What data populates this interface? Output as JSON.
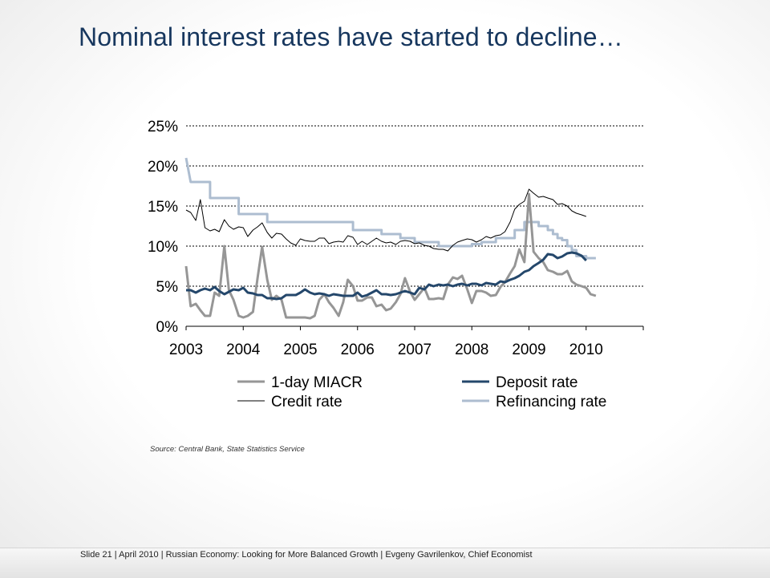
{
  "slide": {
    "title": "Nominal interest rates have started to decline…",
    "source": "Source: Central Bank, State Statistics Service",
    "footer": "Slide 21  | April 2010 | Russian Economy: Looking for More Balanced Growth | Evgeny Gavrilenkov, Chief Economist"
  },
  "chart_data": {
    "type": "line",
    "title": "",
    "x_tick_labels": [
      "2003",
      "2004",
      "2005",
      "2006",
      "2007",
      "2008",
      "2009",
      "2010"
    ],
    "y_tick_labels": [
      "0%",
      "5%",
      "10%",
      "15%",
      "20%",
      "25%"
    ],
    "ylim": [
      0,
      25
    ],
    "xlim": [
      2003.0,
      2011.0
    ],
    "grid": "horizontal dotted",
    "legend_position": "bottom",
    "series": [
      {
        "name": "1-day MIACR",
        "color": "#969696",
        "x": [
          2003.0,
          2003.08,
          2003.17,
          2003.25,
          2003.33,
          2003.42,
          2003.5,
          2003.58,
          2003.67,
          2003.75,
          2003.83,
          2003.92,
          2004.0,
          2004.08,
          2004.17,
          2004.25,
          2004.33,
          2004.42,
          2004.5,
          2004.58,
          2004.67,
          2004.75,
          2004.83,
          2004.92,
          2005.0,
          2005.08,
          2005.17,
          2005.25,
          2005.33,
          2005.42,
          2005.5,
          2005.58,
          2005.67,
          2005.75,
          2005.83,
          2005.92,
          2006.0,
          2006.08,
          2006.17,
          2006.25,
          2006.33,
          2006.42,
          2006.5,
          2006.58,
          2006.67,
          2006.75,
          2006.83,
          2006.92,
          2007.0,
          2007.08,
          2007.17,
          2007.25,
          2007.33,
          2007.42,
          2007.5,
          2007.58,
          2007.67,
          2007.75,
          2007.83,
          2007.92,
          2008.0,
          2008.08,
          2008.17,
          2008.25,
          2008.33,
          2008.42,
          2008.5,
          2008.58,
          2008.67,
          2008.75,
          2008.83,
          2008.92,
          2009.0,
          2009.08,
          2009.17,
          2009.25,
          2009.33,
          2009.42,
          2009.5,
          2009.58,
          2009.67,
          2009.75,
          2009.83,
          2009.92,
          2010.0,
          2010.08,
          2010.17
        ],
        "y": [
          7.5,
          2.5,
          2.8,
          2.0,
          1.3,
          1.3,
          4.2,
          3.8,
          10.0,
          4.5,
          3.3,
          1.3,
          1.1,
          1.3,
          1.8,
          6.0,
          9.9,
          5.8,
          3.3,
          3.8,
          3.3,
          1.1,
          1.1,
          1.1,
          1.1,
          1.1,
          1.0,
          1.3,
          3.3,
          4.0,
          3.0,
          2.3,
          1.3,
          3.0,
          5.8,
          5.0,
          3.2,
          3.2,
          3.6,
          3.6,
          2.5,
          2.7,
          2.0,
          2.2,
          3.0,
          4.0,
          6.0,
          4.3,
          3.3,
          4.0,
          4.8,
          3.4,
          3.4,
          3.5,
          3.4,
          5.2,
          6.1,
          5.9,
          6.3,
          4.6,
          2.9,
          4.4,
          4.4,
          4.2,
          3.8,
          3.9,
          4.9,
          5.5,
          6.6,
          7.5,
          9.6,
          8.0,
          16.5,
          9.3,
          8.5,
          8.0,
          7.0,
          6.8,
          6.5,
          6.5,
          6.9,
          5.6,
          5.2,
          5.0,
          4.8,
          4.0,
          3.8
        ]
      },
      {
        "name": "Deposit rate",
        "color": "#24476b",
        "x": [
          2003.0,
          2003.08,
          2003.17,
          2003.25,
          2003.33,
          2003.42,
          2003.5,
          2003.58,
          2003.67,
          2003.75,
          2003.83,
          2003.92,
          2004.0,
          2004.08,
          2004.17,
          2004.25,
          2004.33,
          2004.42,
          2004.5,
          2004.58,
          2004.67,
          2004.75,
          2004.83,
          2004.92,
          2005.0,
          2005.08,
          2005.17,
          2005.25,
          2005.33,
          2005.42,
          2005.5,
          2005.58,
          2005.67,
          2005.75,
          2005.83,
          2005.92,
          2006.0,
          2006.08,
          2006.17,
          2006.25,
          2006.33,
          2006.42,
          2006.5,
          2006.58,
          2006.67,
          2006.75,
          2006.83,
          2006.92,
          2007.0,
          2007.08,
          2007.17,
          2007.25,
          2007.33,
          2007.42,
          2007.5,
          2007.58,
          2007.67,
          2007.75,
          2007.83,
          2007.92,
          2008.0,
          2008.08,
          2008.17,
          2008.25,
          2008.33,
          2008.42,
          2008.5,
          2008.58,
          2008.67,
          2008.75,
          2008.83,
          2008.92,
          2009.0,
          2009.08,
          2009.17,
          2009.25,
          2009.33,
          2009.42,
          2009.5,
          2009.58,
          2009.67,
          2009.75,
          2009.83,
          2009.92,
          2010.0
        ],
        "y": [
          4.5,
          4.5,
          4.2,
          4.5,
          4.7,
          4.5,
          4.9,
          4.4,
          4.0,
          4.3,
          4.6,
          4.5,
          4.8,
          4.2,
          4.1,
          3.9,
          3.9,
          3.5,
          3.5,
          3.4,
          3.5,
          3.9,
          3.9,
          3.9,
          4.2,
          4.6,
          4.2,
          4.0,
          4.1,
          4.0,
          3.8,
          4.0,
          3.9,
          3.8,
          3.8,
          3.8,
          4.2,
          3.7,
          3.9,
          4.2,
          4.5,
          4.0,
          4.0,
          3.9,
          4.0,
          4.2,
          4.4,
          4.2,
          4.0,
          4.8,
          4.6,
          5.2,
          5.0,
          5.2,
          5.1,
          5.2,
          5.0,
          5.2,
          5.3,
          5.1,
          5.3,
          5.3,
          5.1,
          5.4,
          5.3,
          5.2,
          5.6,
          5.5,
          5.8,
          6.0,
          6.3,
          6.8,
          7.0,
          7.5,
          7.9,
          8.3,
          9.0,
          8.9,
          8.5,
          8.7,
          9.1,
          9.2,
          9.1,
          8.8,
          8.2
        ]
      },
      {
        "name": "Credit rate",
        "color": "#000000",
        "x": [
          2003.0,
          2003.08,
          2003.17,
          2003.25,
          2003.33,
          2003.42,
          2003.5,
          2003.58,
          2003.67,
          2003.75,
          2003.83,
          2003.92,
          2004.0,
          2004.08,
          2004.17,
          2004.25,
          2004.33,
          2004.42,
          2004.5,
          2004.58,
          2004.67,
          2004.75,
          2004.83,
          2004.92,
          2005.0,
          2005.08,
          2005.17,
          2005.25,
          2005.33,
          2005.42,
          2005.5,
          2005.58,
          2005.67,
          2005.75,
          2005.83,
          2005.92,
          2006.0,
          2006.08,
          2006.17,
          2006.25,
          2006.33,
          2006.42,
          2006.5,
          2006.58,
          2006.67,
          2006.75,
          2006.83,
          2006.92,
          2007.0,
          2007.08,
          2007.17,
          2007.25,
          2007.33,
          2007.42,
          2007.5,
          2007.58,
          2007.67,
          2007.75,
          2007.83,
          2007.92,
          2008.0,
          2008.08,
          2008.17,
          2008.25,
          2008.33,
          2008.42,
          2008.5,
          2008.58,
          2008.67,
          2008.75,
          2008.83,
          2008.92,
          2009.0,
          2009.08,
          2009.17,
          2009.25,
          2009.33,
          2009.42,
          2009.5,
          2009.58,
          2009.67,
          2009.75,
          2009.83,
          2009.92,
          2010.0
        ],
        "y": [
          14.5,
          14.2,
          13.2,
          15.8,
          12.3,
          11.9,
          12.1,
          11.8,
          13.3,
          12.5,
          12.1,
          12.4,
          12.3,
          11.2,
          12.0,
          12.4,
          12.9,
          11.7,
          11.0,
          11.6,
          11.5,
          10.9,
          10.4,
          10.1,
          10.9,
          10.7,
          10.6,
          10.6,
          11.0,
          11.0,
          10.3,
          10.5,
          10.6,
          10.5,
          11.3,
          11.1,
          10.2,
          10.6,
          10.2,
          10.6,
          11.0,
          10.6,
          10.4,
          10.5,
          10.2,
          10.6,
          10.7,
          10.6,
          10.3,
          10.4,
          10.1,
          10.0,
          9.7,
          9.6,
          9.6,
          9.4,
          10.1,
          10.5,
          10.7,
          10.9,
          10.8,
          10.5,
          10.8,
          11.2,
          11.0,
          11.3,
          11.4,
          11.8,
          13.0,
          14.6,
          15.2,
          15.6,
          17.1,
          16.6,
          16.1,
          16.2,
          16.0,
          15.8,
          15.2,
          15.3,
          15.0,
          14.4,
          14.1,
          13.9,
          13.7
        ]
      },
      {
        "name": "Refinancing rate",
        "color": "#adbdd0",
        "x": [
          2003.0,
          2003.08,
          2003.08,
          2003.42,
          2003.42,
          2003.92,
          2003.92,
          2004.42,
          2004.42,
          2005.92,
          2005.92,
          2006.42,
          2006.42,
          2006.75,
          2006.75,
          2007.0,
          2007.0,
          2007.42,
          2007.42,
          2008.0,
          2008.0,
          2008.17,
          2008.17,
          2008.42,
          2008.42,
          2008.75,
          2008.75,
          2008.92,
          2008.92,
          2009.17,
          2009.17,
          2009.33,
          2009.33,
          2009.42,
          2009.42,
          2009.5,
          2009.5,
          2009.58,
          2009.58,
          2009.67,
          2009.67,
          2009.75,
          2009.75,
          2009.83,
          2009.83,
          2010.0,
          2010.0,
          2010.17
        ],
        "y": [
          21.0,
          18.0,
          18.0,
          18.0,
          16.0,
          16.0,
          14.0,
          14.0,
          13.0,
          13.0,
          12.0,
          12.0,
          11.5,
          11.5,
          11.0,
          11.0,
          10.5,
          10.5,
          10.0,
          10.0,
          10.25,
          10.25,
          10.5,
          10.5,
          11.0,
          11.0,
          12.0,
          12.0,
          13.0,
          13.0,
          12.5,
          12.5,
          12.0,
          12.0,
          11.5,
          11.5,
          11.0,
          11.0,
          10.75,
          10.75,
          10.0,
          10.0,
          9.5,
          9.5,
          8.75,
          8.75,
          8.5,
          8.5
        ]
      }
    ]
  }
}
